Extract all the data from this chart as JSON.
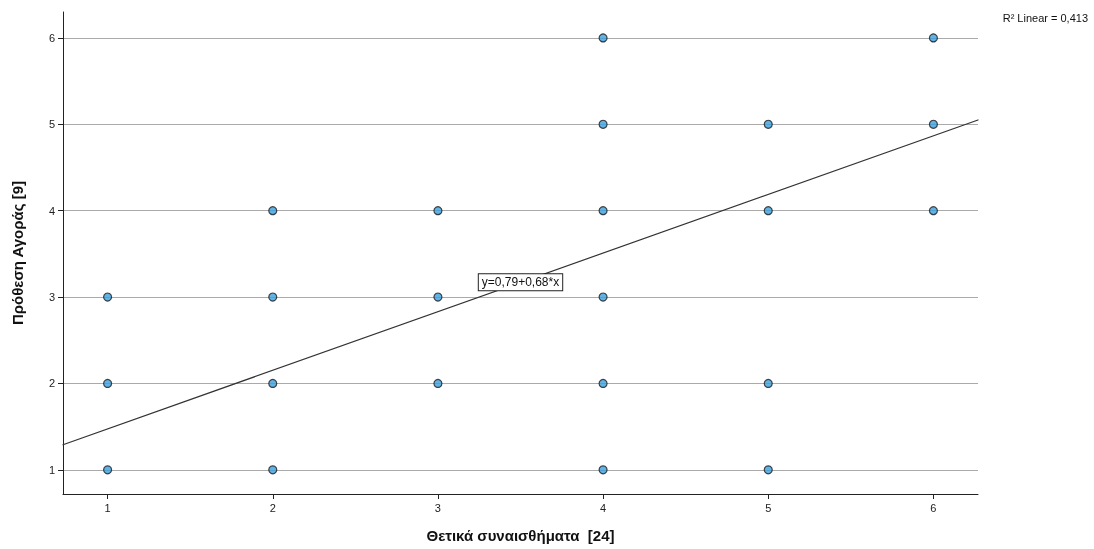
{
  "chart_data": {
    "type": "scatter",
    "xlabel": "Θετικά συναισθήματα  [24]",
    "ylabel": "Πρόθεση Αγοράς [9]",
    "xlim": [
      0.73,
      6.27
    ],
    "ylim": [
      0.72,
      6.3
    ],
    "xticks": [
      1,
      2,
      3,
      4,
      5,
      6
    ],
    "yticks": [
      1,
      2,
      3,
      4,
      5,
      6
    ],
    "grid": "y",
    "marker": "circle",
    "series": [
      {
        "color": "#3aa0e0",
        "x": [
          1,
          1,
          1,
          2,
          2,
          2,
          2,
          3,
          3,
          3,
          4,
          4,
          4,
          4,
          4,
          4,
          5,
          5,
          5,
          5,
          6,
          6,
          6
        ],
        "values": [
          1,
          2,
          3,
          1,
          2,
          3,
          4,
          2,
          3,
          4,
          1,
          2,
          3,
          4,
          5,
          6,
          1,
          2,
          4,
          5,
          4,
          5,
          6
        ]
      },
      {
        "type": "line",
        "color": "#333333",
        "marker": "none",
        "line_style": "solid",
        "x": [
          0.73,
          6.27
        ],
        "values": [
          1.29,
          5.05
        ]
      }
    ],
    "annotations": [
      "R² Linear = 0,413",
      {
        "text": "y=0,79+0,68*x",
        "x": 3.5,
        "y": 3.17
      }
    ]
  }
}
